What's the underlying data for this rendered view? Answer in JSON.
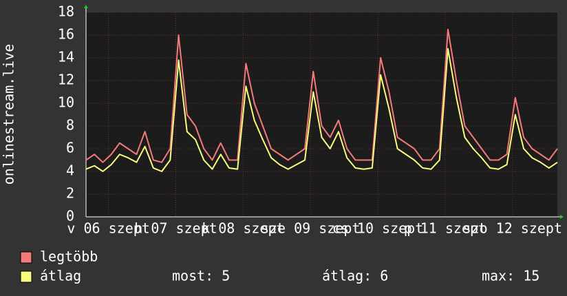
{
  "chart_data": {
    "type": "line",
    "y_label": "onlinestream.live",
    "x": [
      0,
      3,
      6,
      9,
      12,
      15,
      18,
      21,
      24,
      27,
      30,
      33,
      36,
      39,
      42,
      45,
      48,
      51,
      54,
      57,
      60,
      63,
      66,
      69,
      72,
      75,
      78,
      81,
      84,
      87,
      90,
      93,
      96,
      99,
      102,
      105,
      108,
      111,
      114,
      117,
      120,
      123,
      126,
      129,
      132,
      135,
      138,
      141,
      144,
      147,
      150,
      153,
      156,
      159,
      162,
      165,
      168
    ],
    "xlim": [
      0,
      168
    ],
    "xticks": [
      {
        "value": 8,
        "label": "v 06 szept"
      },
      {
        "value": 32,
        "label": "h 07 szept"
      },
      {
        "value": 56,
        "label": "k 08 szept"
      },
      {
        "value": 80,
        "label": "sze 09 szept"
      },
      {
        "value": 104,
        "label": "cs 10 szept"
      },
      {
        "value": 128,
        "label": "p 11 szept"
      },
      {
        "value": 152,
        "label": "szo 12 szept"
      }
    ],
    "ylim": [
      0,
      18
    ],
    "yticks": [
      0,
      2,
      4,
      6,
      8,
      10,
      12,
      14,
      16,
      18
    ],
    "grid": true,
    "series": [
      {
        "name": "legtöbb",
        "color": "#f47a7a",
        "values": [
          5,
          5.5,
          4.8,
          5.5,
          6.5,
          6,
          5.5,
          7.5,
          5,
          4.8,
          6,
          16,
          9,
          8,
          6,
          5,
          6.5,
          5,
          5,
          13.5,
          10,
          8,
          6,
          5.5,
          5,
          5.5,
          6,
          12.8,
          8,
          7,
          8.5,
          6,
          5,
          5,
          5,
          14,
          11,
          7,
          6.5,
          6,
          5,
          5,
          6,
          16.5,
          12,
          8,
          7,
          6,
          5,
          5,
          5.5,
          10.5,
          7,
          6,
          5.5,
          5,
          6
        ]
      },
      {
        "name": "átlag",
        "color": "#fafa7d",
        "values": [
          4.2,
          4.5,
          4,
          4.6,
          5.5,
          5.2,
          4.8,
          6.2,
          4.3,
          4,
          5,
          13.8,
          7.5,
          6.8,
          5,
          4.2,
          5.5,
          4.3,
          4.2,
          11.5,
          8.5,
          6.8,
          5.2,
          4.6,
          4.2,
          4.6,
          5,
          11,
          7,
          6,
          7.5,
          5.2,
          4.3,
          4.2,
          4.3,
          12.5,
          9.5,
          6,
          5.5,
          5,
          4.3,
          4.2,
          5,
          14.8,
          10.5,
          7,
          6,
          5.2,
          4.3,
          4.2,
          4.6,
          9,
          6,
          5.2,
          4.8,
          4.3,
          4.8
        ]
      }
    ],
    "stats": [
      "most: 5",
      "átlag: 6",
      "max: 15"
    ]
  }
}
